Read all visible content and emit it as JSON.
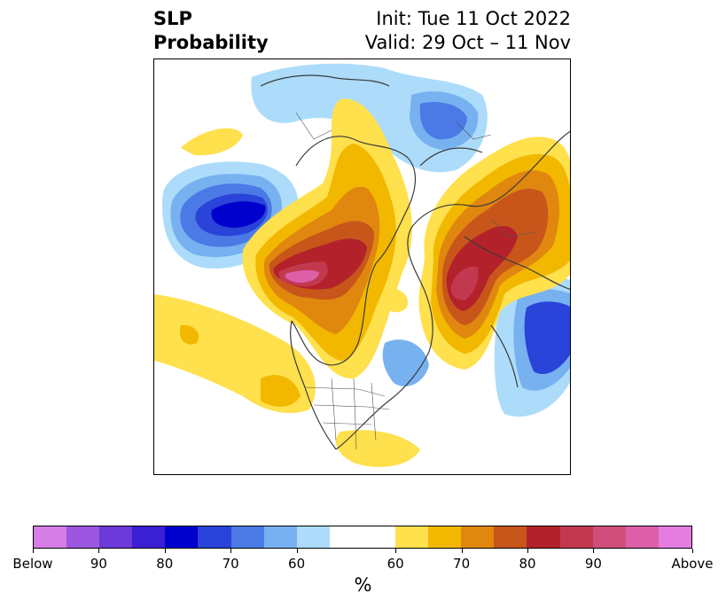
{
  "title": {
    "left_line1": "SLP",
    "left_line2": "Probability",
    "right_line1": "Init: Tue 11 Oct 2022",
    "right_line2": "Valid: 29 Oct – 11 Nov"
  },
  "colorbar": {
    "unit": "%",
    "below_colors": [
      "#d67de6",
      "#9c57e0",
      "#6c3ad8",
      "#3b1fd4",
      "#0000cd",
      "#2a43d9",
      "#4b7ae6",
      "#78b1f0",
      "#acdcfa"
    ],
    "neutral_color": "#ffffff",
    "above_colors": [
      "#ffe04d",
      "#f2b800",
      "#e0870f",
      "#c8561b",
      "#b3222a",
      "#c2394f",
      "#cf4f7a",
      "#dc5fa8",
      "#e57de0"
    ],
    "tick_labels": [
      "Below",
      "90",
      "80",
      "70",
      "60",
      "60",
      "70",
      "80",
      "90",
      "Above"
    ]
  }
}
